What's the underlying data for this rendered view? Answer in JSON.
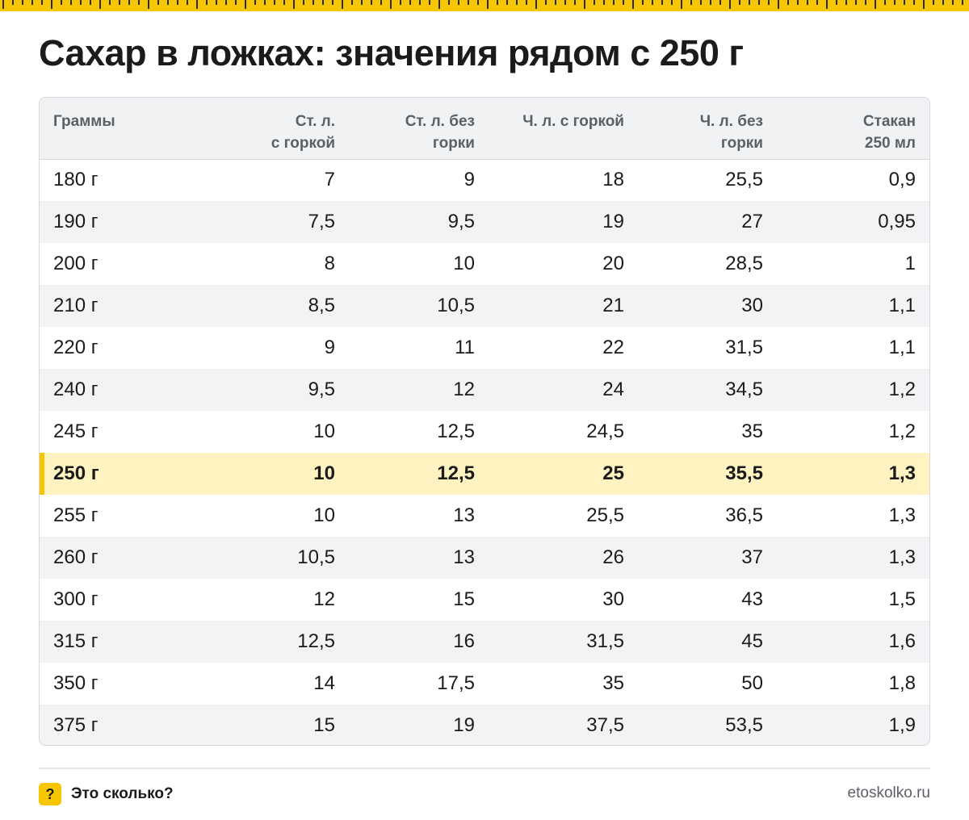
{
  "title": "Сахар в ложках: значения рядом с 250 г",
  "table": {
    "headers": [
      [
        "Граммы"
      ],
      [
        "Ст. л.",
        "с горкой"
      ],
      [
        "Ст. л. без",
        "горки"
      ],
      [
        "Ч. л. с горкой"
      ],
      [
        "Ч. л. без",
        "горки"
      ],
      [
        "Стакан",
        "250 мл"
      ]
    ],
    "rows": [
      [
        "180 г",
        "7",
        "9",
        "18",
        "25,5",
        "0,9"
      ],
      [
        "190 г",
        "7,5",
        "9,5",
        "19",
        "27",
        "0,95"
      ],
      [
        "200 г",
        "8",
        "10",
        "20",
        "28,5",
        "1"
      ],
      [
        "210 г",
        "8,5",
        "10,5",
        "21",
        "30",
        "1,1"
      ],
      [
        "220 г",
        "9",
        "11",
        "22",
        "31,5",
        "1,1"
      ],
      [
        "240 г",
        "9,5",
        "12",
        "24",
        "34,5",
        "1,2"
      ],
      [
        "245 г",
        "10",
        "12,5",
        "24,5",
        "35",
        "1,2"
      ],
      [
        "250 г",
        "10",
        "12,5",
        "25",
        "35,5",
        "1,3"
      ],
      [
        "255 г",
        "10",
        "13",
        "25,5",
        "36,5",
        "1,3"
      ],
      [
        "260 г",
        "10,5",
        "13",
        "26",
        "37",
        "1,3"
      ],
      [
        "300 г",
        "12",
        "15",
        "30",
        "43",
        "1,5"
      ],
      [
        "315 г",
        "12,5",
        "16",
        "31,5",
        "45",
        "1,6"
      ],
      [
        "350 г",
        "14",
        "17,5",
        "35",
        "50",
        "1,8"
      ],
      [
        "375 г",
        "15",
        "19",
        "37,5",
        "53,5",
        "1,9"
      ]
    ],
    "highlight_row": 7,
    "highlight_color": "#fef3c1",
    "accent_color": "#f6c700"
  },
  "footer": {
    "icon": "question-mark-icon",
    "icon_glyph": "?",
    "brand": "Это сколько?",
    "site": "etoskolko.ru"
  }
}
